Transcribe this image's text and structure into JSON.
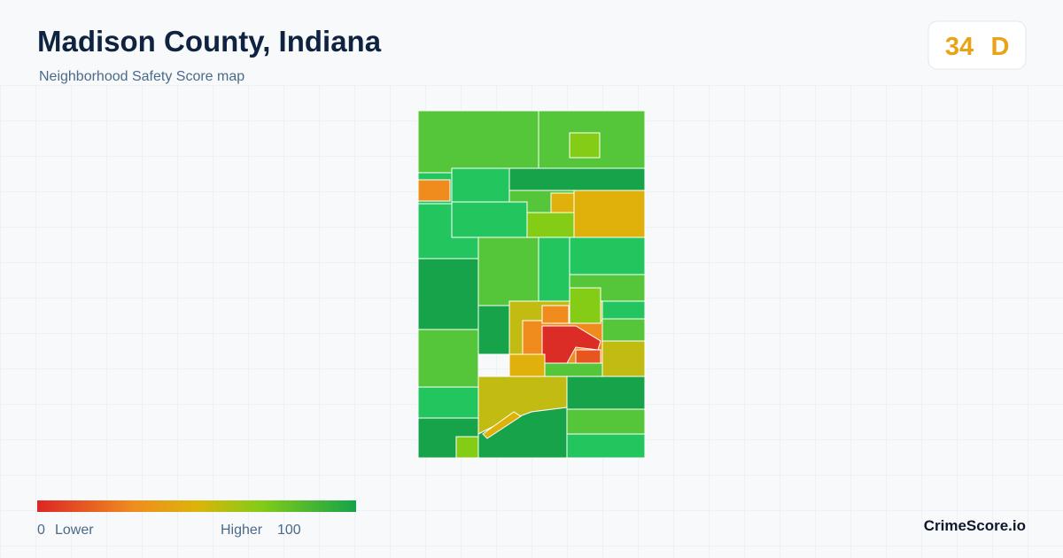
{
  "header": {
    "title": "Madison County, Indiana",
    "subtitle": "Neighborhood Safety Score map"
  },
  "score": {
    "value": 34,
    "grade": "D"
  },
  "legend": {
    "min": 0,
    "min_label": "Lower",
    "max_label": "Higher",
    "max": 100
  },
  "brand": "CrimeScore.io"
}
